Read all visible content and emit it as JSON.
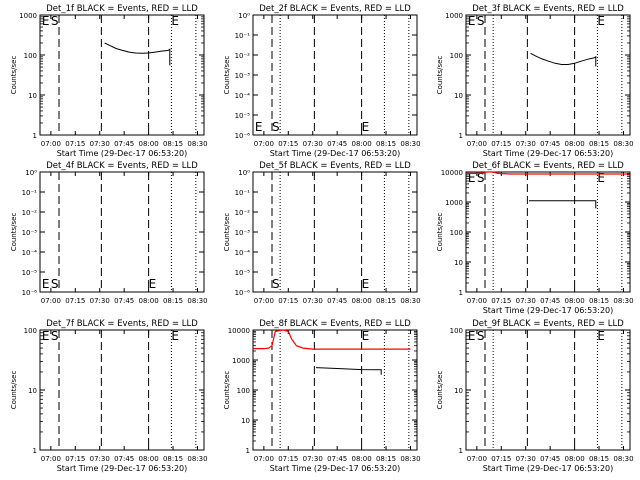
{
  "figure": {
    "background": "#ffffff",
    "event_color": "#000000",
    "lld_color": "#ff0000"
  },
  "chart_data": [
    {
      "type": "line",
      "title": "Det_1f BLACK = Events, RED = LLD",
      "xlabel": "Start Time (29-Dec-17 06:53:20)",
      "ylabel": "Counts/sec",
      "x_ticks": [
        "07:00",
        "07:15",
        "07:30",
        "07:45",
        "08:00",
        "08:15",
        "08:30"
      ],
      "y_ticks": [
        "1",
        "10",
        "100",
        "1000"
      ],
      "y_scale": "log",
      "ylim": [
        1,
        1000
      ],
      "xlim": [
        "06:53:20",
        "08:34:00"
      ],
      "vertical_markers": {
        "dashed": [
          "07:05",
          "07:31",
          "08:00"
        ],
        "dotted": [
          "08:14",
          "08:29"
        ],
        "labels": [
          {
            "text": "E",
            "x": "06:54:30",
            "y": 1000
          },
          {
            "text": "S",
            "x": "07:00",
            "y": 1000
          },
          {
            "text": "E",
            "x": "08:14",
            "y": 1000
          }
        ]
      },
      "series": [
        {
          "role": "events",
          "color": "#000000",
          "points": [
            [
              "07:33",
              200
            ],
            [
              "07:36",
              175
            ],
            [
              "07:40",
              145
            ],
            [
              "07:44",
              130
            ],
            [
              "07:48",
              118
            ],
            [
              "07:52",
              112
            ],
            [
              "07:56",
              110
            ],
            [
              "08:00",
              112
            ],
            [
              "08:04",
              118
            ],
            [
              "08:08",
              125
            ],
            [
              "08:12",
              130
            ],
            [
              "08:13",
              140
            ],
            [
              "08:13",
              55
            ]
          ]
        }
      ]
    },
    {
      "type": "line",
      "title": "Det_2f BLACK = Events, RED = LLD",
      "xlabel": "Start Time (29-Dec-17 06:53:20)",
      "ylabel": "Counts/sec",
      "x_ticks": [
        "07:00",
        "07:15",
        "07:30",
        "07:45",
        "08:00",
        "08:15",
        "08:30"
      ],
      "y_ticks": [
        "10⁰",
        "10⁻¹",
        "10⁻²",
        "10⁻³",
        "10⁻⁴",
        "10⁻⁵",
        "10⁻⁶"
      ],
      "y_ticks_top_to_bottom": true,
      "y_scale": "log",
      "xlim": [
        "06:53:20",
        "08:34:00"
      ],
      "vertical_markers": {
        "dashed": [
          "07:05",
          "07:31",
          "08:00"
        ],
        "dotted": [
          "07:10",
          "08:14",
          "08:29"
        ],
        "labels": [
          {
            "text": "E",
            "x": "06:54:30",
            "y": "bottom"
          },
          {
            "text": "S",
            "x": "07:05",
            "y": "bottom"
          },
          {
            "text": "E",
            "x": "08:00",
            "y": "bottom"
          }
        ]
      },
      "series": []
    },
    {
      "type": "line",
      "title": "Det_3f BLACK = Events, RED = LLD",
      "xlabel": "Start Time (29-Dec-17 06:53:20)",
      "ylabel": "Counts/sec",
      "x_ticks": [
        "07:00",
        "07:15",
        "07:30",
        "07:45",
        "08:00",
        "08:15",
        "08:30"
      ],
      "y_ticks": [
        "1",
        "10",
        "100",
        "1000"
      ],
      "y_scale": "log",
      "ylim": [
        1,
        1000
      ],
      "xlim": [
        "06:53:20",
        "08:34:00"
      ],
      "vertical_markers": {
        "dashed": [
          "07:05",
          "07:31",
          "08:00"
        ],
        "dotted": [
          "07:10",
          "08:14",
          "08:29"
        ],
        "labels": [
          {
            "text": "E",
            "x": "06:54:30",
            "y": 1000
          },
          {
            "text": "S",
            "x": "07:00",
            "y": 1000
          },
          {
            "text": "E",
            "x": "08:14",
            "y": 1000
          }
        ]
      },
      "series": [
        {
          "role": "events",
          "color": "#000000",
          "points": [
            [
              "07:33",
              110
            ],
            [
              "07:36",
              95
            ],
            [
              "07:40",
              80
            ],
            [
              "07:44",
              70
            ],
            [
              "07:48",
              62
            ],
            [
              "07:52",
              58
            ],
            [
              "07:56",
              58
            ],
            [
              "08:00",
              62
            ],
            [
              "08:04",
              70
            ],
            [
              "08:08",
              78
            ],
            [
              "08:12",
              85
            ],
            [
              "08:13",
              90
            ],
            [
              "08:13",
              52
            ]
          ]
        }
      ]
    },
    {
      "type": "line",
      "title": "Det_4f BLACK = Events, RED = LLD",
      "xlabel": "",
      "ylabel": "Counts/sec",
      "x_ticks": [
        "07:00",
        "07:15",
        "07:30",
        "07:45",
        "08:00",
        "08:15",
        "08:30"
      ],
      "y_ticks": [
        "10⁰",
        "10⁻¹",
        "10⁻²",
        "10⁻³",
        "10⁻⁴",
        "10⁻⁵",
        "10⁻⁶"
      ],
      "y_ticks_top_to_bottom": true,
      "y_scale": "log",
      "xlim": [
        "06:53:20",
        "08:34:00"
      ],
      "vertical_markers": {
        "dashed": [
          "07:05",
          "07:31",
          "08:00"
        ],
        "dotted": [
          "08:14",
          "08:29"
        ],
        "labels": [
          {
            "text": "E",
            "x": "06:54:30",
            "y": "bottom"
          },
          {
            "text": "S",
            "x": "07:00",
            "y": "bottom"
          },
          {
            "text": "E",
            "x": "08:00",
            "y": "bottom"
          }
        ]
      },
      "series": []
    },
    {
      "type": "line",
      "title": "Det_5f BLACK = Events, RED = LLD",
      "xlabel": "",
      "ylabel": "Counts/sec",
      "x_ticks": [
        "07:00",
        "07:15",
        "07:30",
        "07:45",
        "08:00",
        "08:15",
        "08:30"
      ],
      "y_ticks": [
        "10⁰",
        "10⁻¹",
        "10⁻²",
        "10⁻³",
        "10⁻⁴",
        "10⁻⁵",
        "10⁻⁶"
      ],
      "y_ticks_top_to_bottom": true,
      "y_scale": "log",
      "xlim": [
        "06:53:20",
        "08:34:00"
      ],
      "vertical_markers": {
        "dashed": [
          "07:05",
          "07:31",
          "08:00"
        ],
        "dotted": [
          "07:10",
          "08:14",
          "08:29"
        ],
        "labels": [
          {
            "text": "S",
            "x": "07:05",
            "y": "bottom"
          },
          {
            "text": "E",
            "x": "08:00",
            "y": "bottom"
          }
        ]
      },
      "series": []
    },
    {
      "type": "line",
      "title": "Det_6f BLACK = Events, RED = LLD",
      "xlabel": "Start Time (29-Dec-17 06:53:20)",
      "ylabel": "Counts/sec",
      "x_ticks": [
        "07:00",
        "07:15",
        "07:30",
        "07:45",
        "08:00",
        "08:15",
        "08:30"
      ],
      "y_ticks": [
        "1",
        "10",
        "100",
        "1000",
        "10000"
      ],
      "y_scale": "log",
      "ylim": [
        1,
        10000
      ],
      "xlim": [
        "06:53:20",
        "08:34:00"
      ],
      "vertical_markers": {
        "dashed": [
          "07:05",
          "07:31",
          "08:00"
        ],
        "dotted": [
          "07:10",
          "08:14",
          "08:29"
        ],
        "labels": [
          {
            "text": "E",
            "x": "06:54:30",
            "y": 10000
          },
          {
            "text": "S",
            "x": "07:00",
            "y": 10000
          },
          {
            "text": "E",
            "x": "08:14",
            "y": 10000
          }
        ]
      },
      "series": [
        {
          "role": "lld",
          "color": "#ff0000",
          "points": [
            [
              "06:53:20",
              9000
            ],
            [
              "07:00",
              9000
            ],
            [
              "07:04",
              9200
            ],
            [
              "07:06",
              10000
            ],
            [
              "07:10",
              10000
            ],
            [
              "07:13",
              9000
            ],
            [
              "07:20",
              8600
            ],
            [
              "07:45",
              8600
            ],
            [
              "08:15",
              8600
            ],
            [
              "08:34",
              8600
            ]
          ]
        },
        {
          "role": "events",
          "color": "#000000",
          "points": [
            [
              "07:32",
              1100
            ],
            [
              "08:13",
              1100
            ],
            [
              "08:13",
              620
            ]
          ]
        }
      ]
    },
    {
      "type": "line",
      "title": "Det_7f BLACK = Events, RED = LLD",
      "xlabel": "Start Time (29-Dec-17 06:53:20)",
      "ylabel": "Counts/sec",
      "x_ticks": [
        "07:00",
        "07:15",
        "07:30",
        "07:45",
        "08:00",
        "08:15",
        "08:30"
      ],
      "y_ticks": [
        "1",
        "10",
        "100"
      ],
      "y_scale": "log",
      "ylim": [
        1,
        100
      ],
      "xlim": [
        "06:53:20",
        "08:34:00"
      ],
      "vertical_markers": {
        "dashed": [
          "07:05",
          "07:31",
          "08:00"
        ],
        "dotted": [
          "08:14",
          "08:29"
        ],
        "labels": [
          {
            "text": "E",
            "x": "06:54:30",
            "y": 100
          },
          {
            "text": "S",
            "x": "07:00",
            "y": 100
          },
          {
            "text": "E",
            "x": "08:14",
            "y": 100
          }
        ]
      },
      "series": []
    },
    {
      "type": "line",
      "title": "Det_8f BLACK = Events, RED = LLD",
      "xlabel": "Start Time (29-Dec-17 06:53:20)",
      "ylabel": "Counts/sec",
      "x_ticks": [
        "07:00",
        "07:15",
        "07:30",
        "07:45",
        "08:00",
        "08:15",
        "08:30"
      ],
      "y_ticks": [
        "1",
        "10",
        "100",
        "1000",
        "10000"
      ],
      "y_scale": "log",
      "ylim": [
        1,
        10000
      ],
      "xlim": [
        "06:53:20",
        "08:34:00"
      ],
      "vertical_markers": {
        "dashed": [
          "07:05",
          "07:31",
          "08:00"
        ],
        "dotted": [
          "07:10",
          "08:14",
          "08:29"
        ],
        "labels": [
          {
            "text": "E",
            "x": "08:00",
            "y": 10000
          }
        ]
      },
      "series": [
        {
          "role": "lld",
          "color": "#ff0000",
          "points": [
            [
              "06:53:20",
              2400
            ],
            [
              "07:00",
              2400
            ],
            [
              "07:03",
              2500
            ],
            [
              "07:05",
              3000
            ],
            [
              "07:07",
              9000
            ],
            [
              "07:12",
              10000
            ],
            [
              "07:15",
              9000
            ],
            [
              "07:17",
              5000
            ],
            [
              "07:20",
              3000
            ],
            [
              "07:24",
              2500
            ],
            [
              "07:30",
              2300
            ],
            [
              "08:00",
              2300
            ],
            [
              "08:30",
              2300
            ]
          ]
        },
        {
          "role": "events",
          "color": "#000000",
          "points": [
            [
              "07:32",
              560
            ],
            [
              "07:45",
              520
            ],
            [
              "08:00",
              480
            ],
            [
              "08:12",
              470
            ],
            [
              "08:12",
              320
            ]
          ]
        }
      ]
    },
    {
      "type": "line",
      "title": "Det_9f BLACK = Events, RED = LLD",
      "xlabel": "Start Time (29-Dec-17 06:53:20)",
      "ylabel": "Counts/sec",
      "x_ticks": [
        "07:00",
        "07:15",
        "07:30",
        "07:45",
        "08:00",
        "08:15",
        "08:30"
      ],
      "y_ticks": [
        "1",
        "10",
        "100"
      ],
      "y_scale": "log",
      "ylim": [
        1,
        100
      ],
      "xlim": [
        "06:53:20",
        "08:34:00"
      ],
      "vertical_markers": {
        "dashed": [
          "07:05",
          "07:31",
          "08:00"
        ],
        "dotted": [
          "07:10",
          "08:14",
          "08:29"
        ],
        "labels": [
          {
            "text": "E",
            "x": "06:54:30",
            "y": 100
          },
          {
            "text": "S",
            "x": "07:00",
            "y": 100
          },
          {
            "text": "E",
            "x": "08:14",
            "y": 100
          }
        ]
      },
      "series": []
    }
  ]
}
